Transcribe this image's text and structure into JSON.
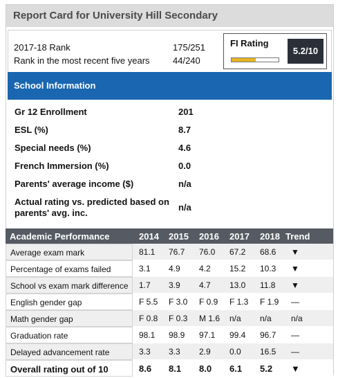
{
  "title": "Report Card for University Hill Secondary",
  "rank": {
    "rows": [
      {
        "label": "2017-18 Rank",
        "value": "175/251"
      },
      {
        "label": "Rank in the most recent five years",
        "value": "44/240"
      }
    ]
  },
  "fi_rating": {
    "label": "FI Rating",
    "score": "5.2/10",
    "bar_fraction": 0.52,
    "bar_color": "#e6b422"
  },
  "school_info": {
    "header": "School Information",
    "rows": [
      {
        "label": "Gr 12 Enrollment",
        "value": "201"
      },
      {
        "label": "ESL (%)",
        "value": "8.7"
      },
      {
        "label": "Special needs (%)",
        "value": "4.6"
      },
      {
        "label": "French Immersion (%)",
        "value": "0.0"
      },
      {
        "label": "Parents' average income ($)",
        "value": "n/a"
      },
      {
        "label": "Actual rating vs. predicted based on parents' avg. inc.",
        "value": "n/a"
      }
    ]
  },
  "academic": {
    "headers": [
      "Academic Performance",
      "2014",
      "2015",
      "2016",
      "2017",
      "2018",
      "Trend"
    ],
    "rows": [
      [
        "Average exam mark",
        "81.1",
        "76.7",
        "76.0",
        "67.2",
        "68.6",
        "▼"
      ],
      [
        "Percentage of exams failed",
        "3.1",
        "4.9",
        "4.2",
        "15.2",
        "10.3",
        "▼"
      ],
      [
        "School vs exam mark difference",
        "1.7",
        "3.9",
        "4.7",
        "13.0",
        "11.8",
        "▼"
      ],
      [
        "English gender gap",
        "F 5.5",
        "F 3.0",
        "F 0.9",
        "F 1.3",
        "F 1.9",
        "—"
      ],
      [
        "Math gender gap",
        "F 0.8",
        "F 0.3",
        "M 1.6",
        "n/a",
        "n/a",
        "n/a"
      ],
      [
        "Graduation rate",
        "98.1",
        "98.9",
        "97.1",
        "99.4",
        "96.7",
        "—"
      ],
      [
        "Delayed advancement rate",
        "3.3",
        "3.3",
        "2.9",
        "0.0",
        "16.5",
        "—"
      ]
    ],
    "total": [
      "Overall rating out of 10",
      "8.6",
      "8.1",
      "8.0",
      "6.1",
      "5.2",
      "▼"
    ]
  },
  "colors": {
    "section_header": "#1a66b0",
    "table_header": "#555a63",
    "title_bar": "#dcdcdc"
  }
}
